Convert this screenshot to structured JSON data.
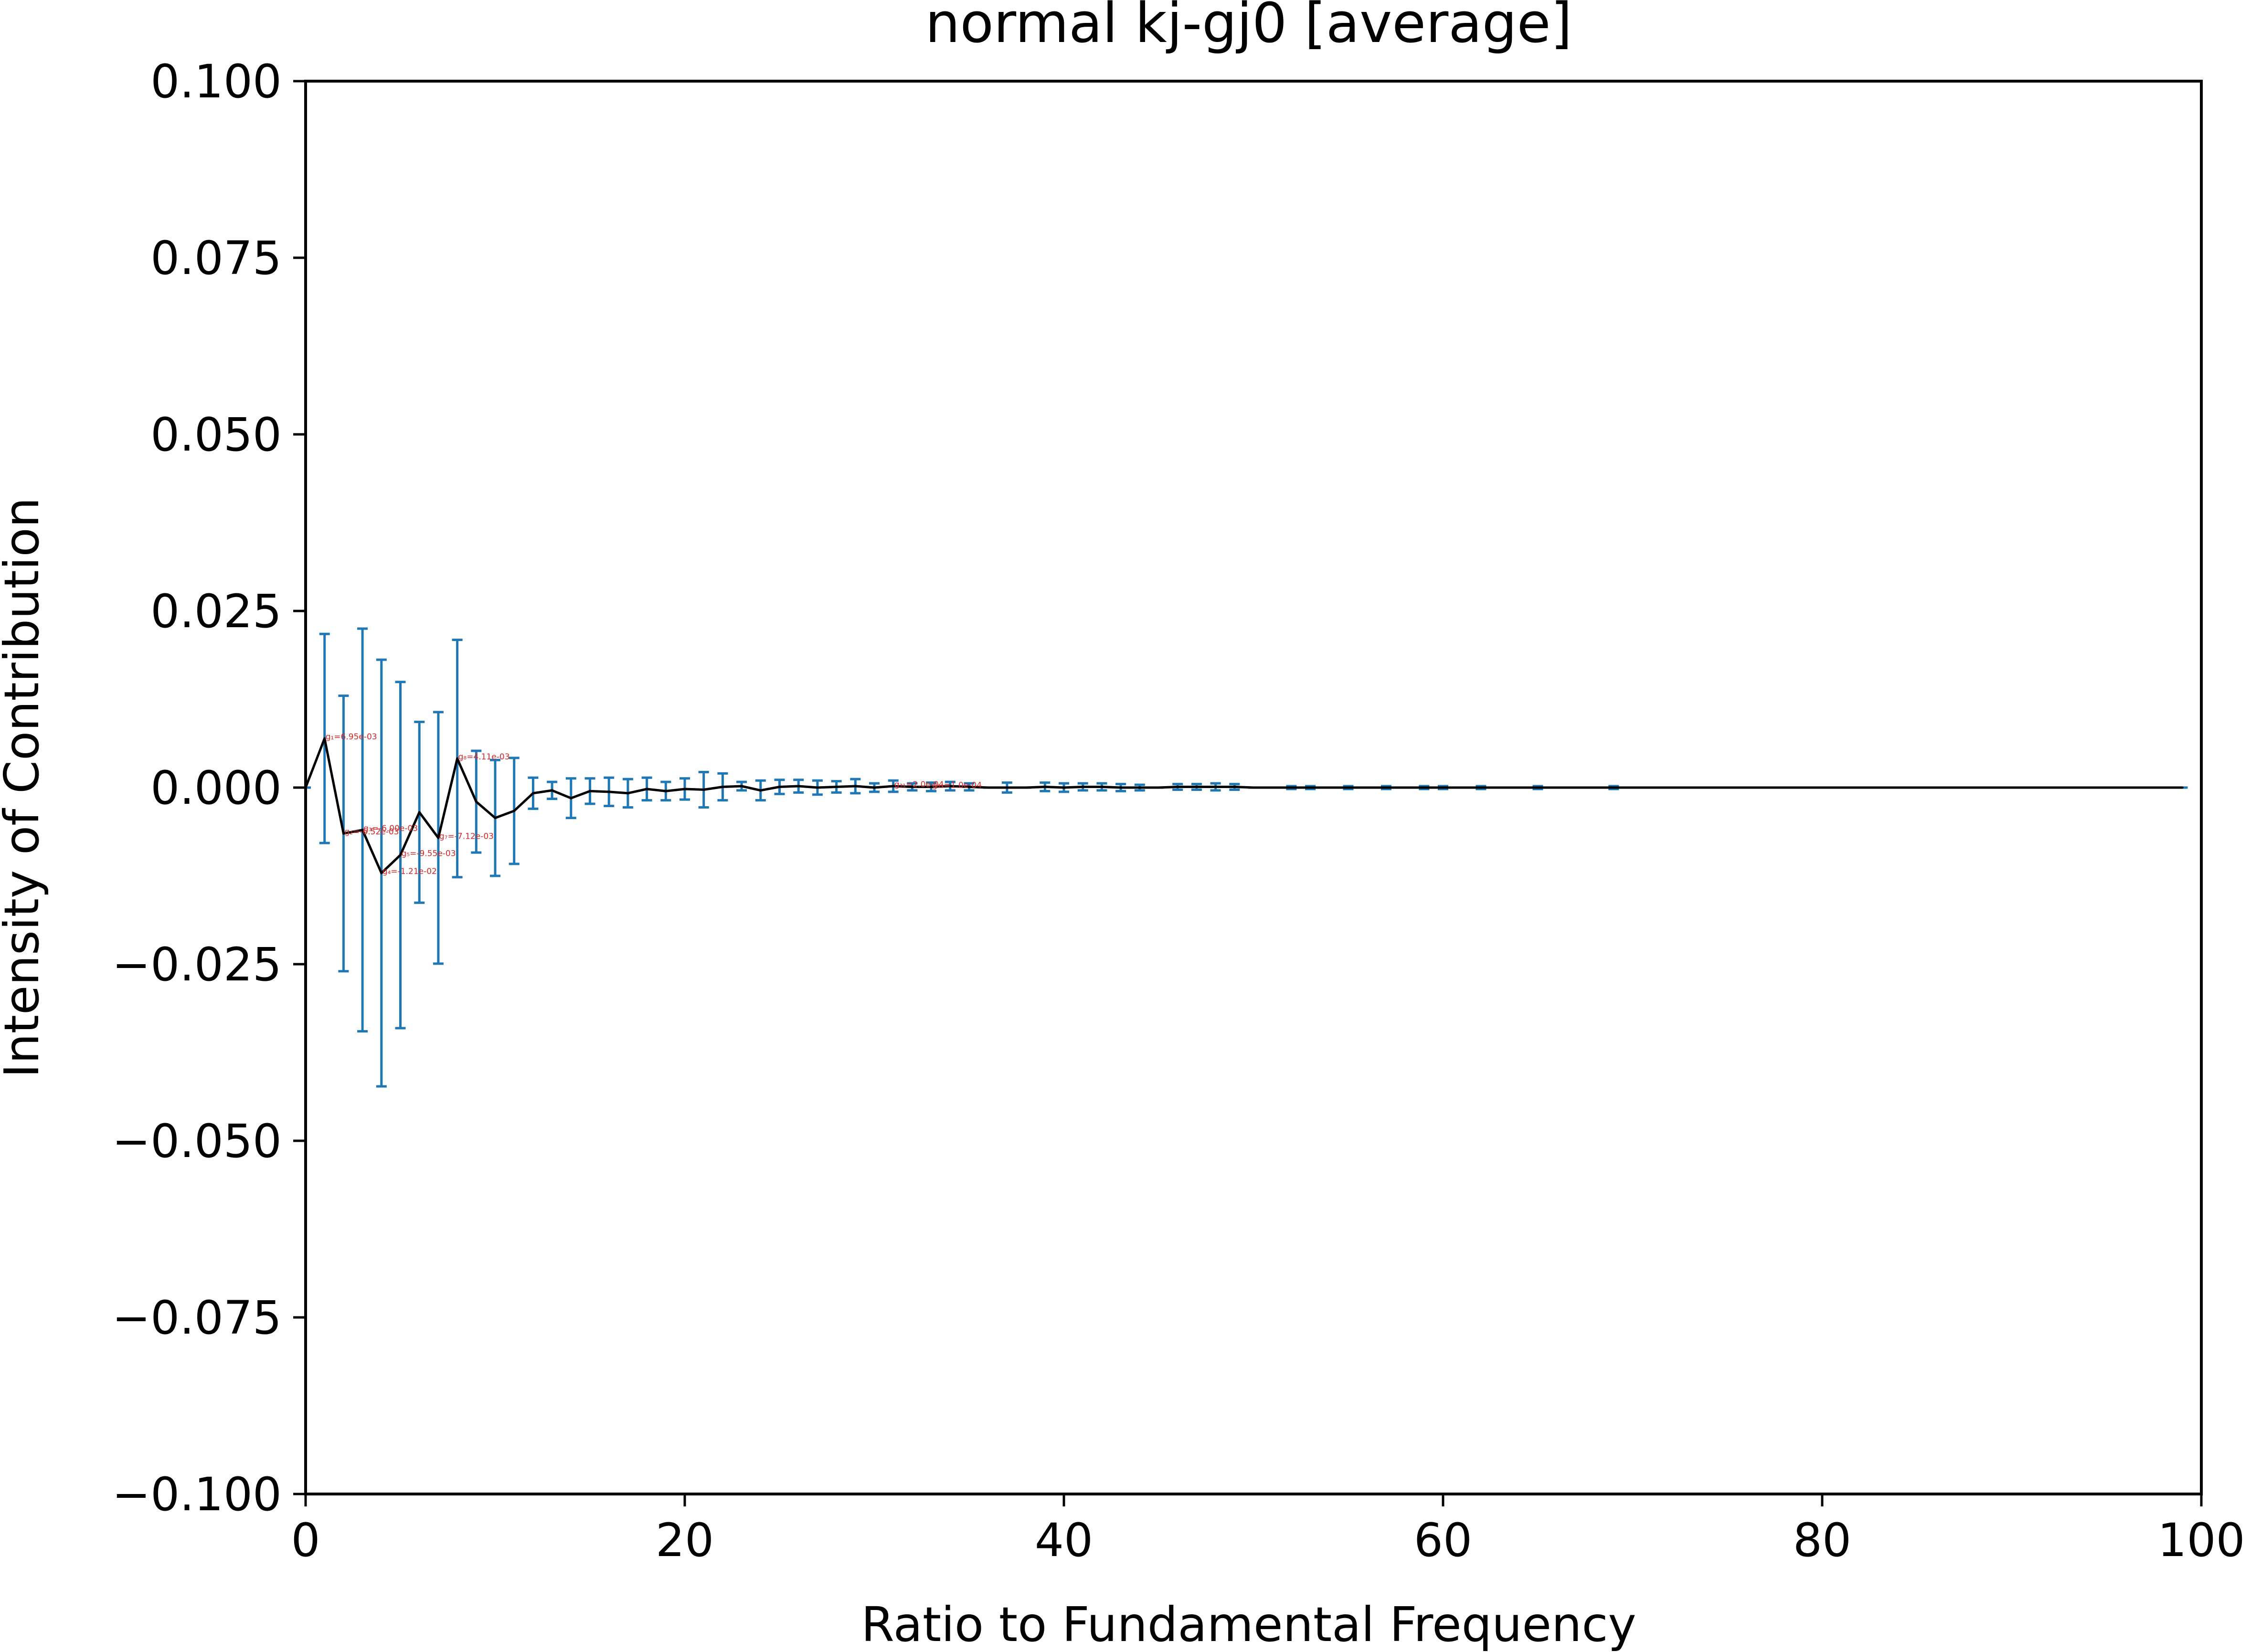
{
  "chart_data": {
    "type": "line",
    "title": "normal kj-gj0 [average]",
    "xlabel": "Ratio to Fundamental Frequency",
    "ylabel": "Intensity of Contribution",
    "xlim": [
      0,
      100
    ],
    "ylim": [
      -0.1,
      0.1
    ],
    "x_ticks": [
      0,
      20,
      40,
      60,
      80,
      100
    ],
    "x_tick_labels": [
      "0",
      "20",
      "40",
      "60",
      "80",
      "100"
    ],
    "y_ticks": [
      0.1,
      0.075,
      0.05,
      0.025,
      0.0,
      -0.025,
      -0.05,
      -0.075,
      -0.1
    ],
    "y_tick_labels": [
      "0.100",
      "0.075",
      "0.050",
      "0.025",
      "0.000",
      "−0.025",
      "−0.050",
      "−0.075",
      "−0.100"
    ],
    "grid": false,
    "line_color": "#000000",
    "errorbar_color": "#1f77b4",
    "annotation_color": "#d62728",
    "series": [
      {
        "x": [
          0,
          1,
          2,
          3,
          4,
          5,
          6,
          7,
          8,
          9,
          10,
          11,
          12,
          13,
          14,
          15,
          16,
          17,
          18,
          19,
          20,
          21,
          22,
          23,
          24,
          25,
          26,
          27,
          28,
          29,
          30,
          31,
          32,
          33,
          34,
          35,
          36,
          37,
          38,
          39,
          40,
          41,
          42,
          43,
          44,
          45,
          46,
          47,
          48,
          49,
          50,
          51,
          52,
          53,
          54,
          55,
          56,
          57,
          58,
          59,
          60,
          61,
          62,
          63,
          64,
          65,
          66,
          67,
          68,
          69,
          70,
          71,
          72,
          73,
          74,
          75,
          76,
          77,
          78,
          79,
          80,
          81,
          82,
          83,
          84,
          85,
          86,
          87,
          88,
          89,
          90,
          91,
          92,
          93,
          94,
          95,
          96,
          97,
          98,
          99
        ],
        "y": [
          0,
          0.00695,
          -0.0065,
          -0.006,
          -0.0121,
          -0.00955,
          -0.0035,
          -0.00712,
          0.00411,
          -0.002,
          -0.0043,
          -0.0033,
          -0.0008,
          -0.0004,
          -0.0015,
          -0.0005,
          -0.0006,
          -0.0008,
          -0.0002,
          -0.0005,
          -0.0002,
          -0.0003,
          0.0001,
          0.0002,
          -0.0004,
          0.0001,
          0.0002,
          0.0,
          0.0001,
          0.0002,
          0.0,
          0.0002,
          0.0001,
          0.0001,
          0.0002,
          0.0001,
          0.0,
          0.0,
          0.0,
          0.0001,
          0.0,
          0.0001,
          0.0001,
          0.0,
          0.0,
          0,
          0.0001,
          0.0001,
          0.0001,
          0.0001,
          0,
          0,
          0,
          0,
          0,
          0,
          0,
          0,
          0,
          0,
          0,
          0,
          0,
          0,
          0,
          0,
          0,
          0,
          0,
          0,
          0,
          0,
          0,
          0,
          0,
          0,
          0,
          0,
          0,
          0,
          0,
          0,
          0,
          0,
          0,
          0,
          0,
          0,
          0,
          0,
          0,
          0,
          0,
          0,
          0,
          0,
          0,
          0,
          0,
          0
        ],
        "err": [
          0,
          0.0148,
          0.0195,
          0.0285,
          0.0302,
          0.0245,
          0.0128,
          0.0178,
          0.0168,
          0.0072,
          0.0082,
          0.0075,
          0.0022,
          0.0012,
          0.0028,
          0.0018,
          0.002,
          0.002,
          0.0016,
          0.0013,
          0.0015,
          0.0025,
          0.0019,
          0.0006,
          0.0014,
          0.001,
          0.0009,
          0.001,
          0.0008,
          0.001,
          0.0006,
          0.0008,
          0.0005,
          0.0006,
          0.0006,
          0.0005,
          0.0,
          0.0007,
          0.0,
          0.0006,
          0.0006,
          0.0005,
          0.0005,
          0.0005,
          0.0004,
          0,
          0.0004,
          0.0004,
          0.0005,
          0.0004,
          0,
          0,
          0.0002,
          0.0002,
          0,
          0.0002,
          0,
          0.0002,
          0,
          0.0002,
          0.0002,
          0,
          0.0002,
          0,
          0,
          0.0002,
          0,
          0,
          0,
          0.0002,
          0,
          0,
          0,
          0,
          0,
          0,
          0,
          0,
          0,
          0,
          0,
          0,
          0,
          0,
          0,
          0,
          0,
          0,
          0,
          0,
          0,
          0,
          0,
          0,
          0,
          0,
          0,
          0,
          0,
          0
        ]
      }
    ],
    "annotations": [
      {
        "x": 1,
        "y": 0.00695,
        "text": "g₁=6.95e-03"
      },
      {
        "x": 2,
        "y": -0.0065,
        "text": "g₂=-6.52e-03"
      },
      {
        "x": 3,
        "y": -0.006,
        "text": "g₃=-6.00e-03"
      },
      {
        "x": 4,
        "y": -0.0121,
        "text": "g₄=-1.21e-02"
      },
      {
        "x": 5,
        "y": -0.00955,
        "text": "g₅=-9.55e-03"
      },
      {
        "x": 7,
        "y": -0.00712,
        "text": "g₇=-7.12e-03"
      },
      {
        "x": 8,
        "y": 0.00411,
        "text": "g₈=4.11e-03"
      },
      {
        "x": 31,
        "y": 0.0002,
        "text": "g₃₁=2.0e-04"
      },
      {
        "x": 33,
        "y": 0.0001,
        "text": "g₃₃=1.0e-04"
      }
    ]
  }
}
